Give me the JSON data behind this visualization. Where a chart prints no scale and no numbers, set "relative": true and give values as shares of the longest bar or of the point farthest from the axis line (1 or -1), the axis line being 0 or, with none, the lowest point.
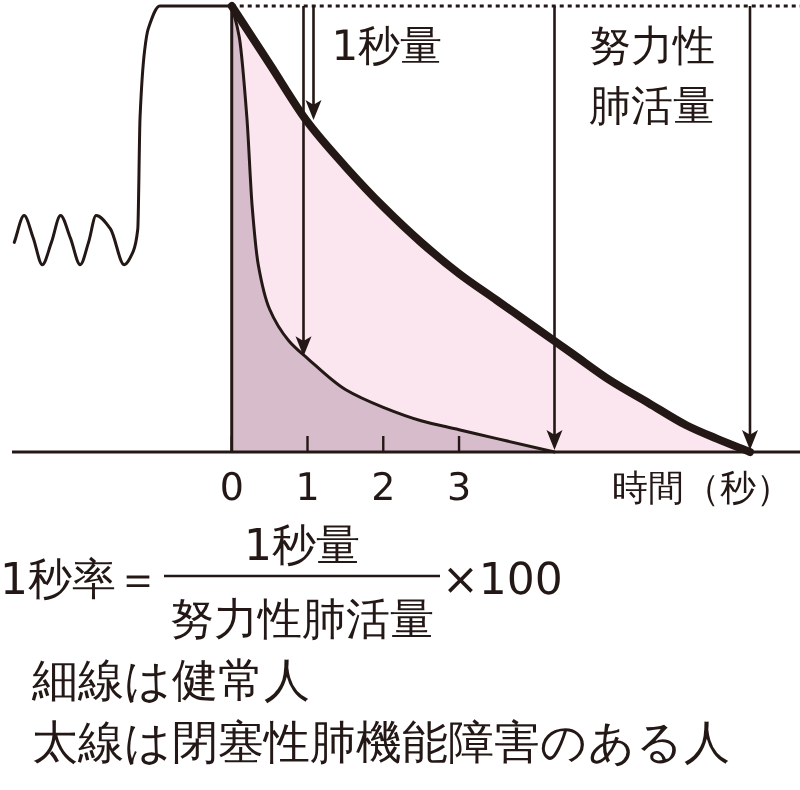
{
  "chart_data": {
    "type": "line",
    "relative": true,
    "xlabel": "時間（秒）",
    "xlim": [
      -2.9,
      7.5
    ],
    "xticks": [
      0,
      1,
      2,
      3
    ],
    "grid": false,
    "legend": false,
    "marker": "none",
    "line_style": "solid",
    "series": [
      {
        "type": "area",
        "color": "#fbe6f0",
        "x": [
          0,
          0.5,
          1,
          1.5,
          2,
          2.5,
          3,
          3.5,
          4,
          4.5,
          5,
          5.5,
          6,
          6.4,
          6.84
        ],
        "values": [
          1,
          0.87,
          0.74,
          0.64,
          0.55,
          0.47,
          0.4,
          0.34,
          0.28,
          0.22,
          0.16,
          0.11,
          0.06,
          0.03,
          0
        ]
      },
      {
        "type": "area",
        "color": "#d7bccb",
        "x": [
          0,
          0.1,
          0.2,
          0.27,
          0.35,
          0.5,
          0.75,
          1,
          1.5,
          2,
          2.5,
          3,
          3.5,
          4.26
        ],
        "values": [
          1,
          0.93,
          0.75,
          0.55,
          0.42,
          0.32,
          0.25,
          0.21,
          0.14,
          0.1,
          0.07,
          0.05,
          0.03,
          0
        ]
      },
      {
        "type": "line",
        "color": "#231815",
        "x": [
          -2.87,
          -2.74,
          -2.62,
          -2.5,
          -2.38,
          -2.26,
          -2.13,
          -2.0,
          -1.89,
          -1.79,
          -1.6,
          -1.42,
          -1.3,
          -1.24,
          -1.21,
          -1.15,
          -1.1,
          -0.95,
          0
        ],
        "values": [
          0.47,
          0.53,
          0.48,
          0.42,
          0.47,
          0.53,
          0.48,
          0.42,
          0.47,
          0.53,
          0.5,
          0.42,
          0.45,
          0.5,
          0.75,
          0.9,
          0.95,
          1,
          1
        ]
      }
    ],
    "ref_lines": [
      {
        "axis": "x",
        "value": 0,
        "line_style": "solid",
        "color": "#231815"
      },
      {
        "axis": "y",
        "value": 1,
        "line_style": "dotted",
        "color": "#231815"
      }
    ],
    "annotations": [
      {
        "text": "1秒量",
        "x": 1,
        "y": 0.74
      },
      "努力性肺活量",
      "1秒率＝",
      "1秒量",
      "努力性肺活量",
      "×100",
      "細線は健常人",
      "太線は閉塞性肺機能障害のある人"
    ]
  }
}
